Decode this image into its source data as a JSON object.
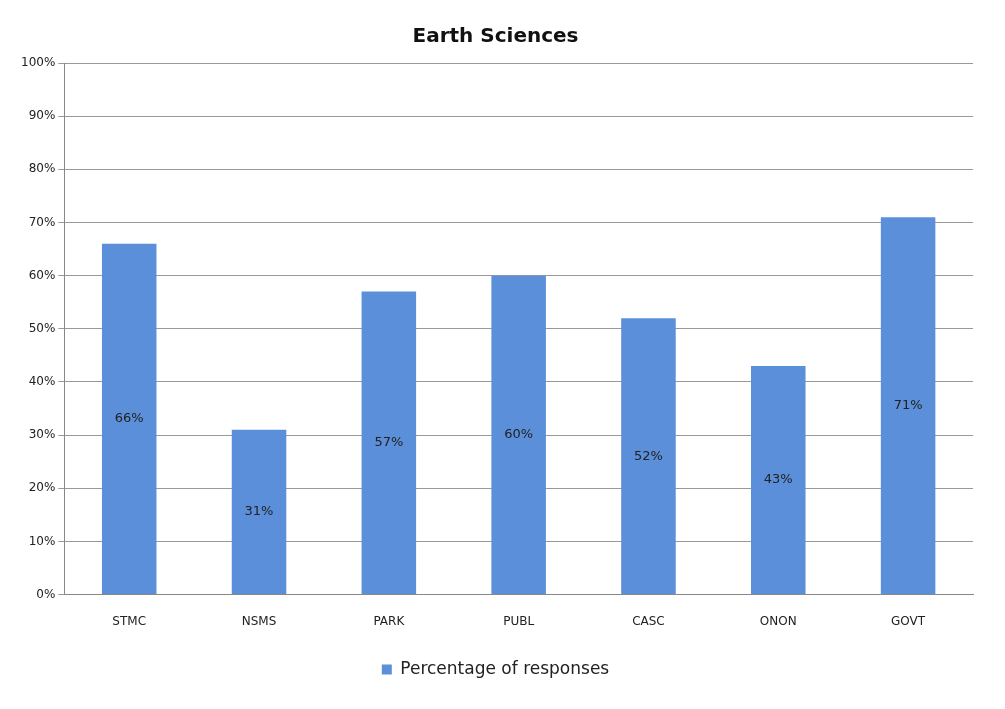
{
  "chart_data": {
    "type": "bar",
    "title": "Earth Sciences",
    "categories": [
      "STMC",
      "NSMS",
      "PARK",
      "PUBL",
      "CASC",
      "ONON",
      "GOVT"
    ],
    "series": [
      {
        "name": "Percentage of responses",
        "color": "#5b8fd9",
        "values": [
          66,
          31,
          57,
          60,
          52,
          43,
          71
        ],
        "value_labels": [
          "66%",
          "31%",
          "57%",
          "60%",
          "52%",
          "43%",
          "71%"
        ]
      }
    ],
    "ylim": [
      0,
      100
    ],
    "yticks": [
      {
        "value": 0,
        "label": "0%"
      },
      {
        "value": 10,
        "label": "10%"
      },
      {
        "value": 20,
        "label": "20%"
      },
      {
        "value": 30,
        "label": "30%"
      },
      {
        "value": 40,
        "label": "40%"
      },
      {
        "value": 50,
        "label": "50%"
      },
      {
        "value": 60,
        "label": "60%"
      },
      {
        "value": 70,
        "label": "70%"
      },
      {
        "value": 80,
        "label": "80%"
      },
      {
        "value": 90,
        "label": "90%"
      },
      {
        "value": 100,
        "label": "100%"
      }
    ],
    "grid": "y",
    "legend": "bottom"
  }
}
